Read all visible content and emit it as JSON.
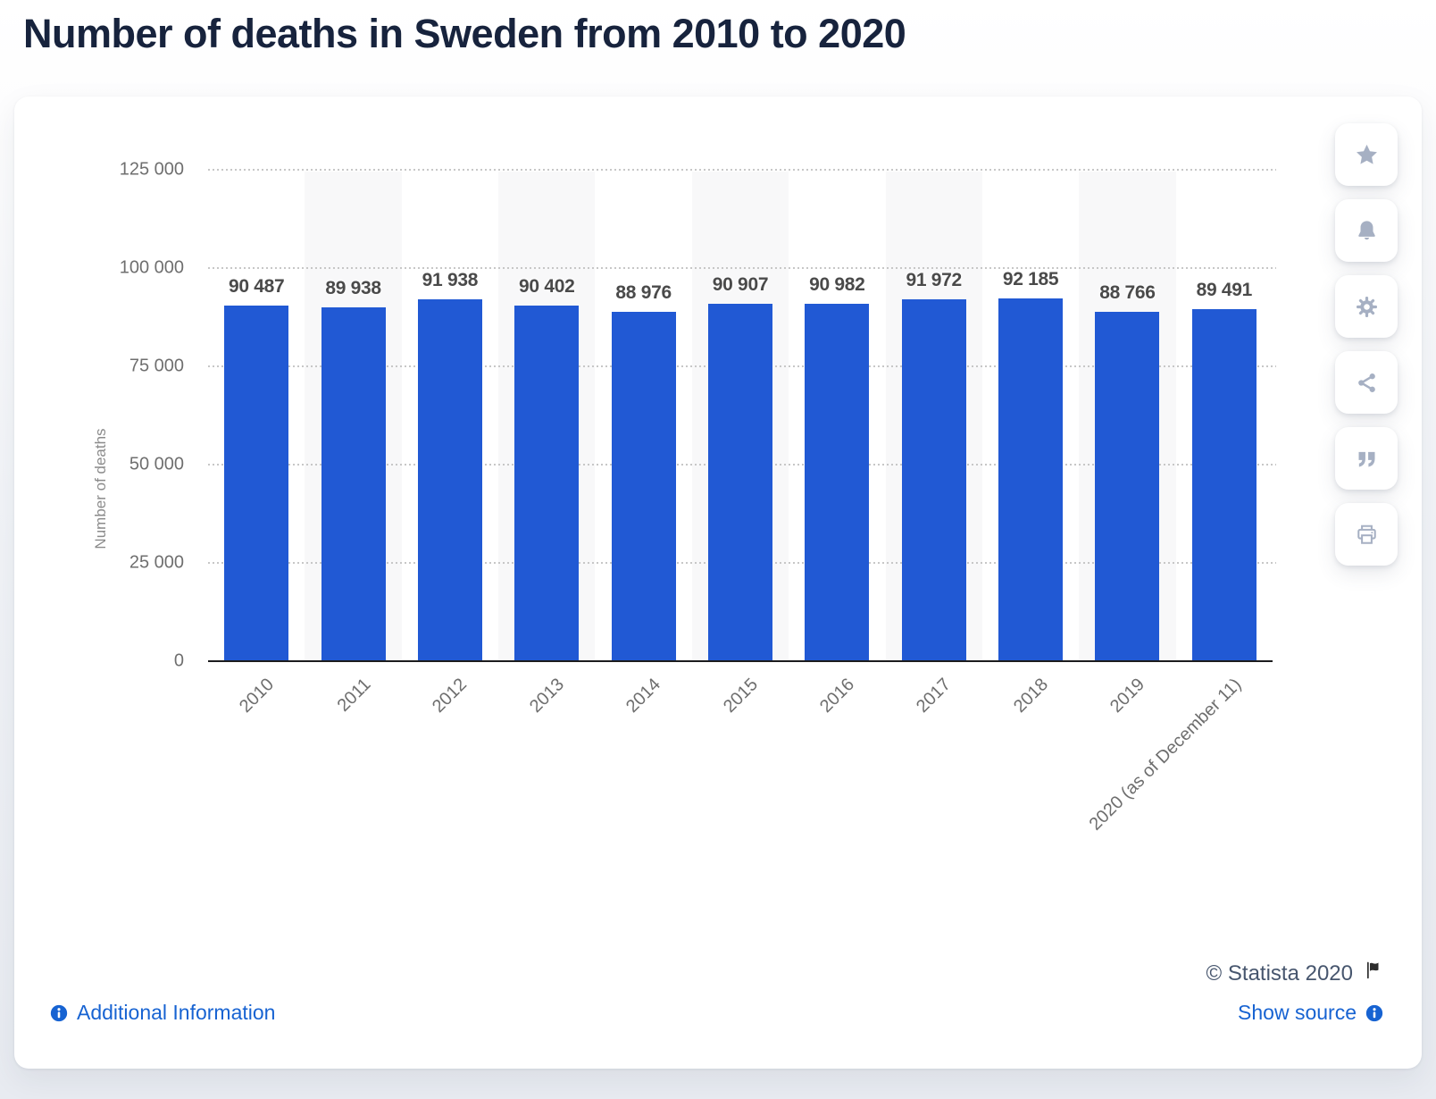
{
  "page": {
    "title": "Number of deaths in Sweden from 2010 to 2020"
  },
  "chart_data": {
    "type": "bar",
    "title": "Number of deaths in Sweden from 2010 to 2020",
    "categories": [
      "2010",
      "2011",
      "2012",
      "2013",
      "2014",
      "2015",
      "2016",
      "2017",
      "2018",
      "2019",
      "2020 (as of December 11)"
    ],
    "values": [
      90487,
      89938,
      91938,
      90402,
      88976,
      90907,
      90982,
      91972,
      92185,
      88766,
      89491
    ],
    "value_labels": [
      "90 487",
      "89 938",
      "91 938",
      "90 402",
      "88 976",
      "90 907",
      "90 982",
      "91 972",
      "92 185",
      "88 766",
      "89 491"
    ],
    "xlabel": "",
    "ylabel": "Number of deaths",
    "ylim": [
      0,
      125000
    ],
    "yticks": [
      0,
      25000,
      50000,
      75000,
      100000,
      125000
    ],
    "ytick_labels": [
      "0",
      "25 000",
      "50 000",
      "75 000",
      "100 000",
      "125 000"
    ],
    "grid": "horizontal-dotted",
    "legend": "none",
    "bar_color": "#2159d4",
    "band_color": "#f8f8f9"
  },
  "toolbar": {
    "buttons": [
      {
        "name": "favorite-button",
        "icon": "star-icon"
      },
      {
        "name": "alerts-button",
        "icon": "bell-icon"
      },
      {
        "name": "settings-button",
        "icon": "gear-icon"
      },
      {
        "name": "share-button",
        "icon": "share-icon"
      },
      {
        "name": "cite-button",
        "icon": "quote-icon"
      },
      {
        "name": "print-button",
        "icon": "print-icon"
      }
    ]
  },
  "footer": {
    "copyright": "© Statista 2020",
    "additional_info_label": "Additional Information",
    "show_source_label": "Show source"
  },
  "colors": {
    "accent_blue": "#2159d4",
    "link_blue": "#1763d2",
    "title_navy": "#17233d",
    "icon_gray": "#a6b0c3",
    "grid_gray": "#c7c7c7"
  }
}
